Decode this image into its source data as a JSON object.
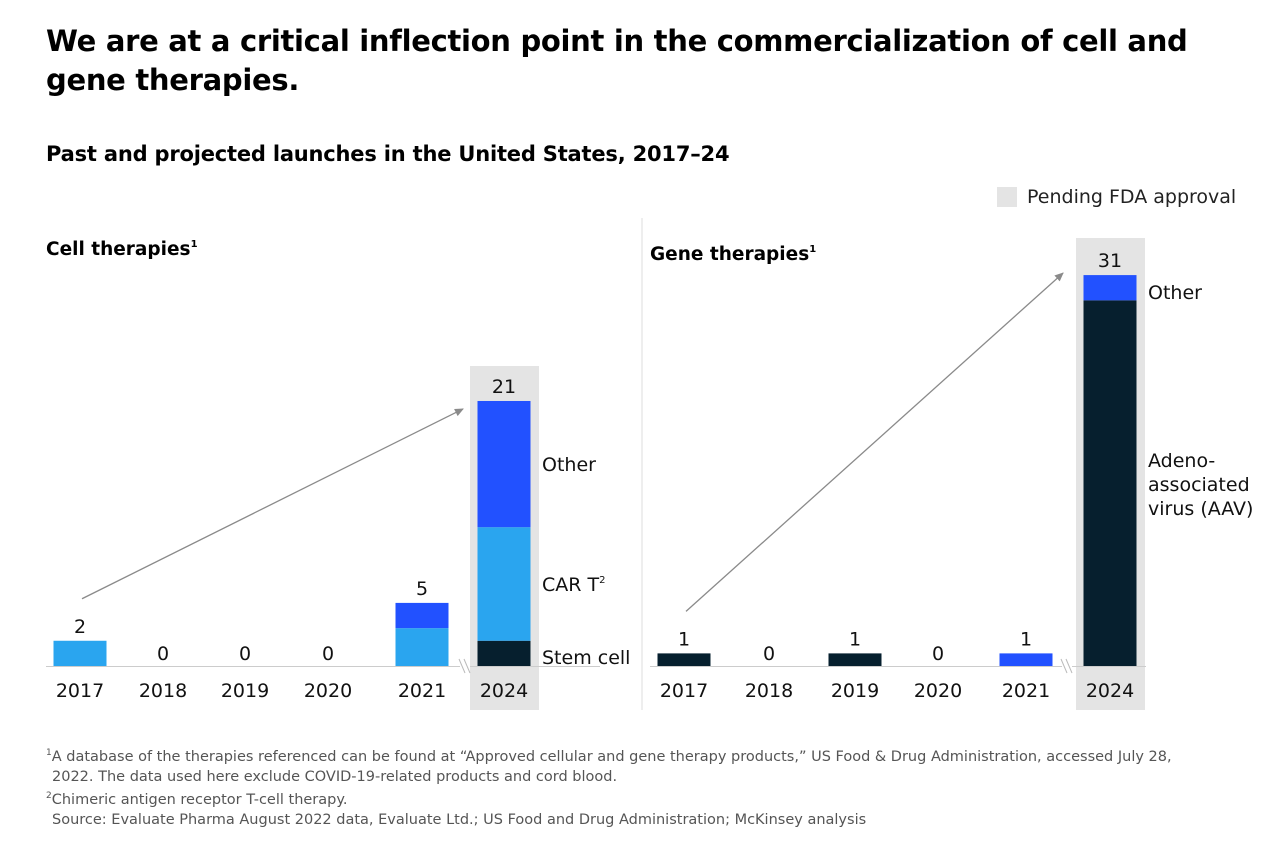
{
  "title": "We are at a critical inflection point in the commercialization of cell and gene therapies.",
  "subtitle": "Past and projected launches in the United States, 2017–24",
  "legend": {
    "pending_label": "Pending FDA approval",
    "pending_color": "#e4e4e4"
  },
  "colors": {
    "car_t": "#2aa5ef",
    "other": "#2251ff",
    "stem_cell": "#061f2e",
    "aav": "#061f2e",
    "pending_bg": "#e4e4e4",
    "arrow": "#8a8a8a",
    "axis": "#cccccc"
  },
  "chart_data": [
    {
      "type": "bar",
      "stacked": true,
      "title": "Cell therapies",
      "title_footnote": "1",
      "categories": [
        "2017",
        "2018",
        "2019",
        "2020",
        "2021",
        "2024"
      ],
      "pending_category": "2024",
      "axis_break_before": "2024",
      "series": [
        {
          "name": "Stem cell",
          "key": "stem_cell",
          "values": [
            0,
            0,
            0,
            0,
            0,
            2
          ]
        },
        {
          "name": "CAR T",
          "key": "car_t",
          "footnote": "2",
          "values": [
            2,
            0,
            0,
            0,
            3,
            9
          ]
        },
        {
          "name": "Other",
          "key": "other",
          "values": [
            0,
            0,
            0,
            0,
            2,
            10
          ]
        }
      ],
      "totals": [
        2,
        0,
        0,
        0,
        5,
        21
      ],
      "segment_labels": [
        {
          "series": "Other",
          "text": "Other"
        },
        {
          "series": "CAR T",
          "text": "CAR T",
          "sup": "2"
        },
        {
          "series": "Stem cell",
          "text": "Stem cell"
        }
      ],
      "arrow": {
        "from": "2017",
        "to": "2024"
      },
      "ylim": [
        0,
        21
      ]
    },
    {
      "type": "bar",
      "stacked": true,
      "title": "Gene therapies",
      "title_footnote": "1",
      "categories": [
        "2017",
        "2018",
        "2019",
        "2020",
        "2021",
        "2024"
      ],
      "pending_category": "2024",
      "axis_break_before": "2024",
      "series": [
        {
          "name": "Adeno-associated virus (AAV)",
          "key": "aav",
          "values": [
            1,
            0,
            1,
            0,
            0,
            29
          ]
        },
        {
          "name": "Other",
          "key": "other",
          "values": [
            0,
            0,
            0,
            0,
            1,
            2
          ]
        }
      ],
      "totals": [
        1,
        0,
        1,
        0,
        1,
        31
      ],
      "segment_labels": [
        {
          "series": "Other",
          "text": "Other"
        },
        {
          "series": "Adeno-associated virus (AAV)",
          "lines": [
            "Adeno-",
            "associated",
            "virus (AAV)"
          ]
        }
      ],
      "arrow": {
        "from": "2017",
        "to": "2024"
      },
      "ylim": [
        0,
        31
      ]
    }
  ],
  "footnotes": {
    "note1_marker": "1",
    "note1_line1": "A database of the therapies referenced can be found at “Approved cellular and gene therapy products,” US Food & Drug Administration, accessed July 28,",
    "note1_line2": "2022. The data used here exclude COVID-19-related products and cord blood.",
    "note2_marker": "2",
    "note2": "Chimeric antigen receptor T-cell therapy.",
    "source": "Source: Evaluate Pharma August 2022 data, Evaluate Ltd.; US Food and Drug Administration; McKinsey analysis"
  }
}
